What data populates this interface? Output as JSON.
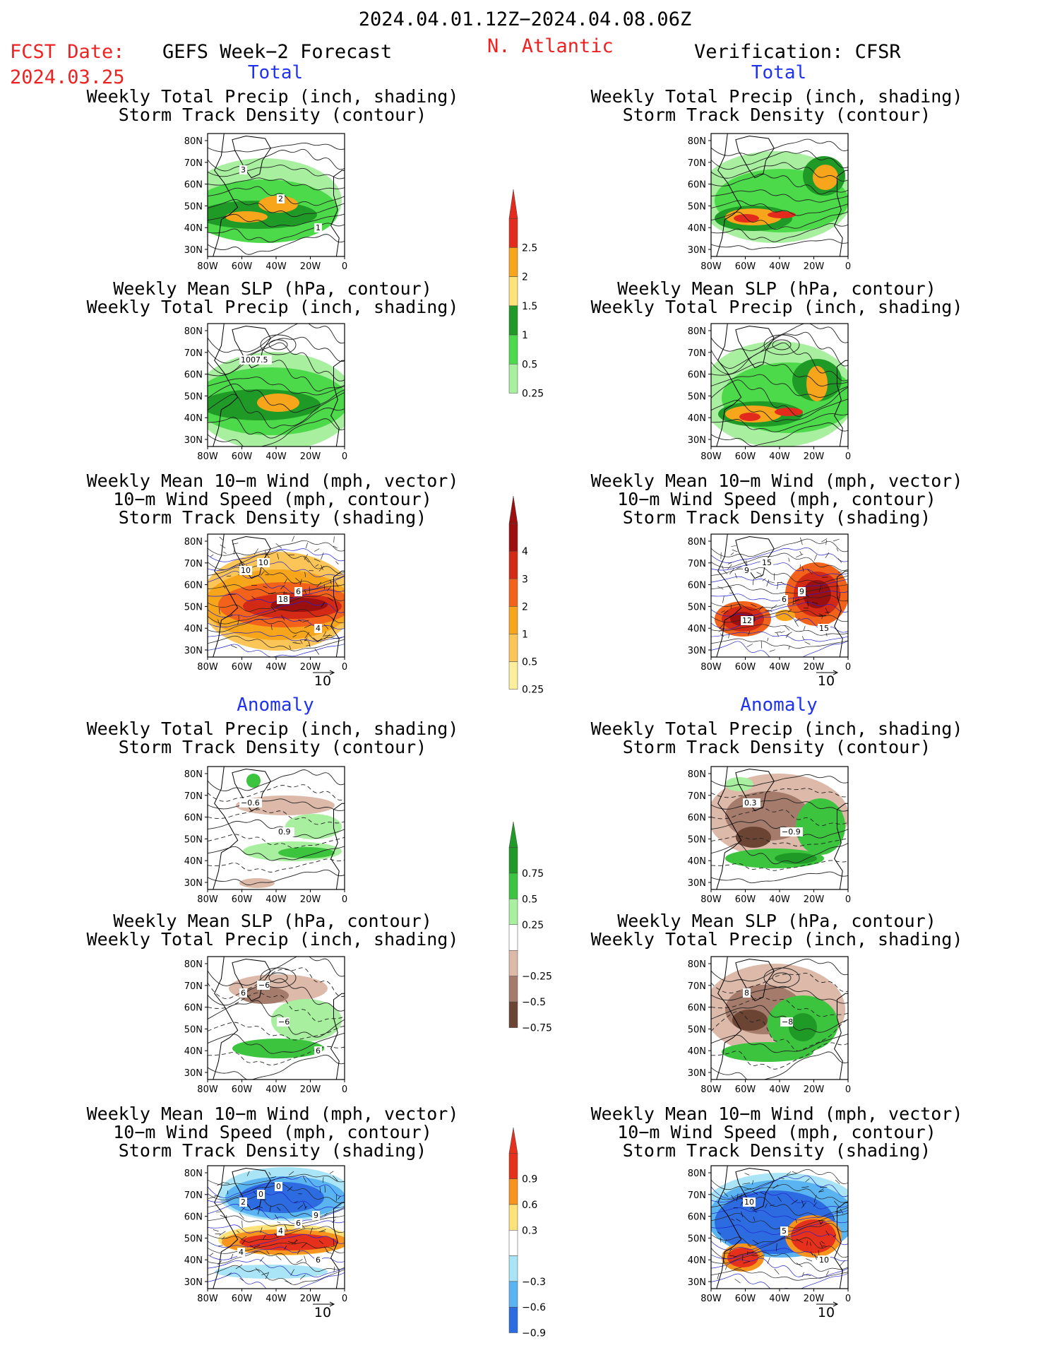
{
  "header": {
    "period": "2024.04.01.12Z−2024.04.08.06Z",
    "fcst_label": "FCST Date:",
    "fcst_date": "2024.03.25",
    "left_title": "GEFS Week−2 Forecast",
    "region": "N. Atlantic",
    "right_title": "Verification: CFSR",
    "total_label": "Total",
    "anomaly_label": "Anomaly"
  },
  "panel_titles": {
    "precip_track": [
      "Weekly Total Precip (inch, shading)",
      "Storm Track Density (contour)"
    ],
    "slp_precip": [
      "Weekly Mean SLP (hPa, contour)",
      "Weekly Total Precip (inch, shading)"
    ],
    "wind_track": [
      "Weekly Mean 10−m Wind (mph, vector)",
      "10−m Wind Speed (mph, contour)",
      "Storm Track Density (shading)"
    ]
  },
  "axes": {
    "lat_ticks": [
      "80N",
      "70N",
      "60N",
      "50N",
      "40N",
      "30N"
    ],
    "lon_ticks": [
      "80W",
      "60W",
      "40W",
      "20W",
      "0"
    ]
  },
  "vector_ref": "10",
  "colorbars": {
    "precip_total": {
      "labels": [
        "2.5",
        "2",
        "1.5",
        "1",
        "0.5",
        "0.25"
      ],
      "colors": [
        "#e22a1d",
        "#f7a51b",
        "#fde27a",
        "#1f9a26",
        "#4cd94a",
        "#a8efa0"
      ]
    },
    "track_total": {
      "labels": [
        "4",
        "3",
        "2",
        "1",
        "0.5",
        "0.25"
      ],
      "colors": [
        "#9c0f0f",
        "#d22a14",
        "#f2621b",
        "#f7a51b",
        "#fbc558",
        "#fdee9c"
      ]
    },
    "precip_anom": {
      "labels": [
        "0.75",
        "0.5",
        "0.25",
        "−0.25",
        "−0.5",
        "−0.75"
      ],
      "colors": [
        "#1f9a26",
        "#3cc43f",
        "#a8efa0",
        "#ffffff",
        "#dcb9a8",
        "#a57c6c",
        "#6b4434"
      ]
    },
    "track_anom": {
      "labels": [
        "0.9",
        "0.6",
        "0.3",
        "−0.3",
        "−0.6",
        "−0.9"
      ],
      "colors": [
        "#e5311c",
        "#f7941d",
        "#fde27a",
        "#ffffff",
        "#a9e5f7",
        "#5ab4f2",
        "#2d6be0"
      ]
    }
  },
  "chart_data": [
    {
      "type": "heatmap",
      "id": "fcst-total-precip-track",
      "column": "GEFS Week−2 Forecast",
      "section": "Total",
      "contour_labels": [
        "3",
        "2",
        "1"
      ]
    },
    {
      "type": "heatmap",
      "id": "obs-total-precip-track",
      "column": "Verification: CFSR",
      "section": "Total",
      "contour_labels": []
    },
    {
      "type": "heatmap",
      "id": "fcst-total-slp-precip",
      "column": "GEFS Week−2 Forecast",
      "section": "Total",
      "contour_labels": [
        "1007.5"
      ]
    },
    {
      "type": "heatmap",
      "id": "obs-total-slp-precip",
      "column": "Verification: CFSR",
      "section": "Total",
      "contour_labels": []
    },
    {
      "type": "heatmap",
      "id": "fcst-total-wind-track",
      "column": "GEFS Week−2 Forecast",
      "section": "Total",
      "contour_labels": [
        "10",
        "18",
        "4",
        "10",
        "6"
      ]
    },
    {
      "type": "heatmap",
      "id": "obs-total-wind-track",
      "column": "Verification: CFSR",
      "section": "Total",
      "contour_labels": [
        "9",
        "6",
        "15",
        "15",
        "9",
        "12"
      ]
    },
    {
      "type": "heatmap",
      "id": "fcst-anom-precip-track",
      "column": "GEFS Week−2 Forecast",
      "section": "Anomaly",
      "contour_labels": [
        "−0.6",
        "0.9"
      ]
    },
    {
      "type": "heatmap",
      "id": "obs-anom-precip-track",
      "column": "Verification: CFSR",
      "section": "Anomaly",
      "contour_labels": [
        "0.3",
        "−0.9"
      ]
    },
    {
      "type": "heatmap",
      "id": "fcst-anom-slp-precip",
      "column": "GEFS Week−2 Forecast",
      "section": "Anomaly",
      "contour_labels": [
        "6",
        "−6",
        "6",
        "−6"
      ]
    },
    {
      "type": "heatmap",
      "id": "obs-anom-slp-precip",
      "column": "Verification: CFSR",
      "section": "Anomaly",
      "contour_labels": [
        "8",
        "−8"
      ]
    },
    {
      "type": "heatmap",
      "id": "fcst-anom-wind-track",
      "column": "GEFS Week−2 Forecast",
      "section": "Anomaly",
      "contour_labels": [
        "2",
        "4",
        "6",
        "0",
        "6",
        "4",
        "0",
        "9"
      ]
    },
    {
      "type": "heatmap",
      "id": "obs-anom-wind-track",
      "column": "Verification: CFSR",
      "section": "Anomaly",
      "contour_labels": [
        "10",
        "5",
        "10"
      ]
    }
  ]
}
